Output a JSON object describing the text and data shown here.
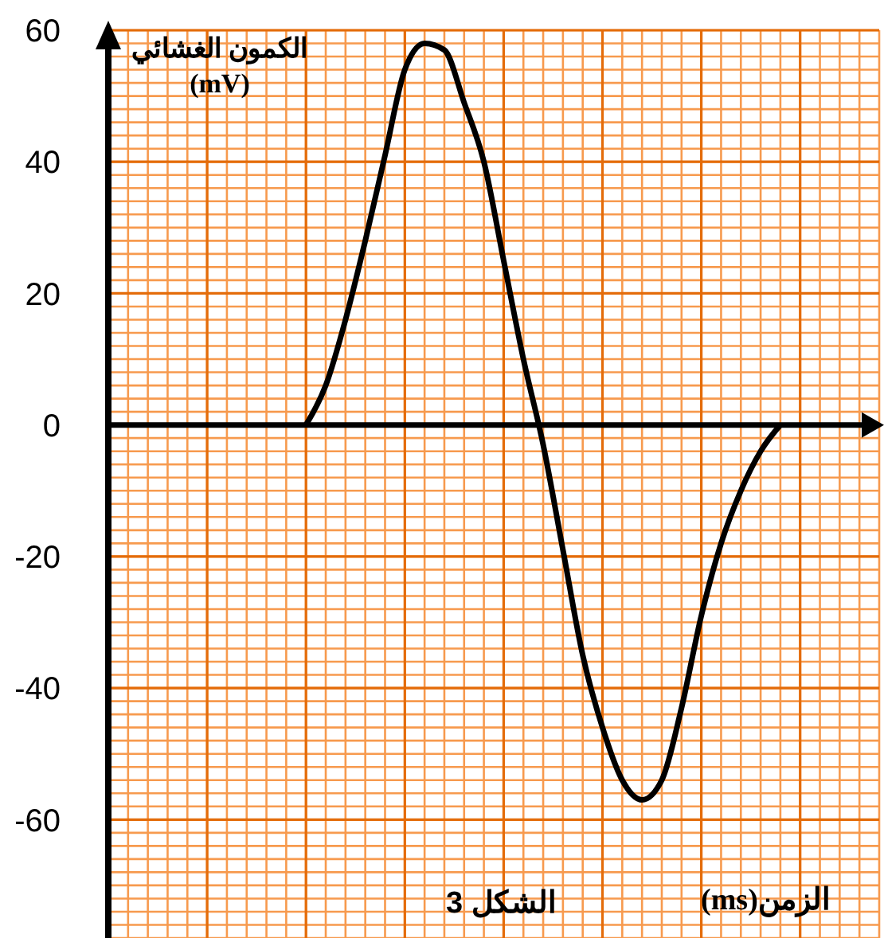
{
  "chart_data": {
    "type": "line",
    "xlabel": "الزمن(ms)",
    "ylabel": "الكمون الغشائي\n(mV)",
    "annotations": [
      "الشكل 3"
    ],
    "categories": [
      null,
      null,
      null,
      null,
      null,
      null,
      null,
      null,
      null,
      null,
      null,
      null,
      null,
      null,
      null,
      null,
      null,
      null,
      null,
      null,
      null,
      null,
      null,
      null,
      null,
      null,
      null,
      null,
      null,
      null,
      null,
      null,
      null,
      null,
      null,
      null,
      null,
      null,
      null,
      null
    ],
    "series": [
      {
        "color": "#000000",
        "values": [
          null,
          null,
          null,
          null,
          null,
          null,
          null,
          null,
          null,
          null,
          0,
          6,
          16,
          28,
          41,
          54,
          58,
          57,
          49,
          40,
          25,
          10,
          -3,
          -19,
          -35,
          -46,
          -54,
          -57,
          -54,
          -43,
          -29,
          -18,
          -10,
          -4,
          0,
          null,
          null,
          null,
          null,
          null
        ]
      }
    ],
    "ylim": [
      -78,
      60
    ],
    "yticks": [
      -60,
      -40,
      -20,
      0,
      20,
      40,
      60
    ],
    "tick_labels": "y",
    "grid": true,
    "marker": "none",
    "line_style": "solid",
    "ref_lines": [
      {
        "axis": "y",
        "value": 0,
        "color": "#000000"
      }
    ]
  }
}
